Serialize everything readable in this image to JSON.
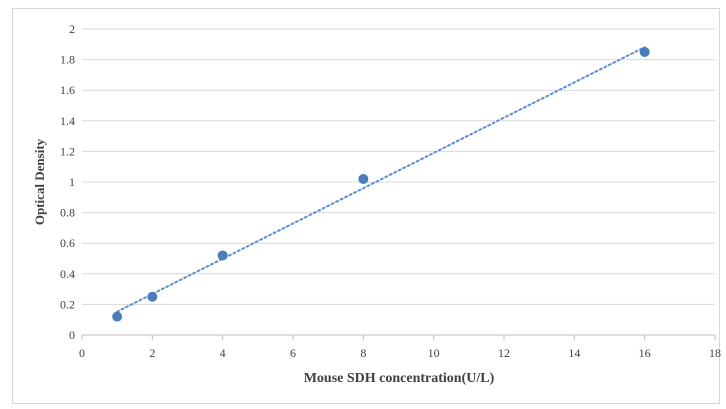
{
  "chart_data": {
    "type": "scatter",
    "title": "",
    "xlabel": "Mouse SDH concentration(U/L)",
    "ylabel": "Optical Density",
    "xlim": [
      0,
      18
    ],
    "ylim": [
      0,
      2
    ],
    "x_ticks": [
      "0",
      "2",
      "4",
      "6",
      "8",
      "10",
      "12",
      "14",
      "16",
      "18"
    ],
    "y_ticks": [
      "0",
      "0.2",
      "0.4",
      "0.6",
      "0.8",
      "1",
      "1.2",
      "1.4",
      "1.6",
      "1.8",
      "2"
    ],
    "grid": "horizontal",
    "legend": "none",
    "trendline": "linear dotted",
    "colors": {
      "marker": "#4a7ebb",
      "trendline": "#5b8fcf",
      "grid": "#d9d9d9",
      "axis": "#bfbfbf"
    },
    "series": [
      {
        "x": [
          1,
          2,
          4,
          8,
          16
        ],
        "y": [
          0.12,
          0.25,
          0.52,
          1.02,
          1.85
        ]
      }
    ]
  }
}
